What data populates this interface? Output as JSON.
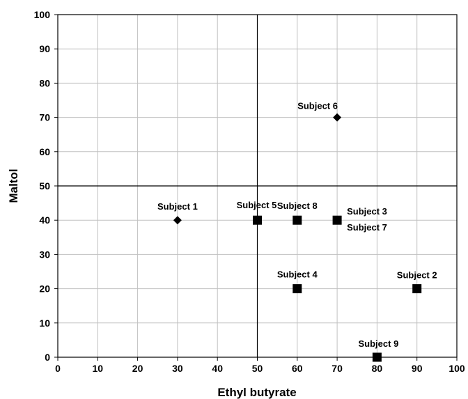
{
  "chart_data": {
    "type": "scatter",
    "xlabel": "Ethyl butyrate",
    "ylabel": "Maltol",
    "xlim": [
      0,
      100
    ],
    "ylim": [
      0,
      100
    ],
    "x_ticks": [
      0,
      10,
      20,
      30,
      40,
      50,
      60,
      70,
      80,
      90,
      100
    ],
    "y_ticks": [
      0,
      10,
      20,
      30,
      40,
      50,
      60,
      70,
      80,
      90,
      100
    ],
    "grid": true,
    "reference_lines": {
      "x": 50,
      "y": 50
    },
    "colors": {
      "marker": "#000000",
      "grid": "#c0c0c0"
    },
    "points": [
      {
        "label": "Subject 1",
        "x": 30,
        "y": 40,
        "marker": "diamond"
      },
      {
        "label": "Subject 2",
        "x": 90,
        "y": 20,
        "marker": "square"
      },
      {
        "label": "Subject 3",
        "x": 70,
        "y": 40,
        "marker": "square"
      },
      {
        "label": "Subject 4",
        "x": 60,
        "y": 20,
        "marker": "square"
      },
      {
        "label": "Subject 5",
        "x": 50,
        "y": 40,
        "marker": "square"
      },
      {
        "label": "Subject 6",
        "x": 70,
        "y": 70,
        "marker": "diamond"
      },
      {
        "label": "Subject 7",
        "x": 70,
        "y": 40,
        "marker": "square"
      },
      {
        "label": "Subject 8",
        "x": 60,
        "y": 40,
        "marker": "square"
      },
      {
        "label": "Subject 9",
        "x": 80,
        "y": 0,
        "marker": "square"
      }
    ]
  }
}
